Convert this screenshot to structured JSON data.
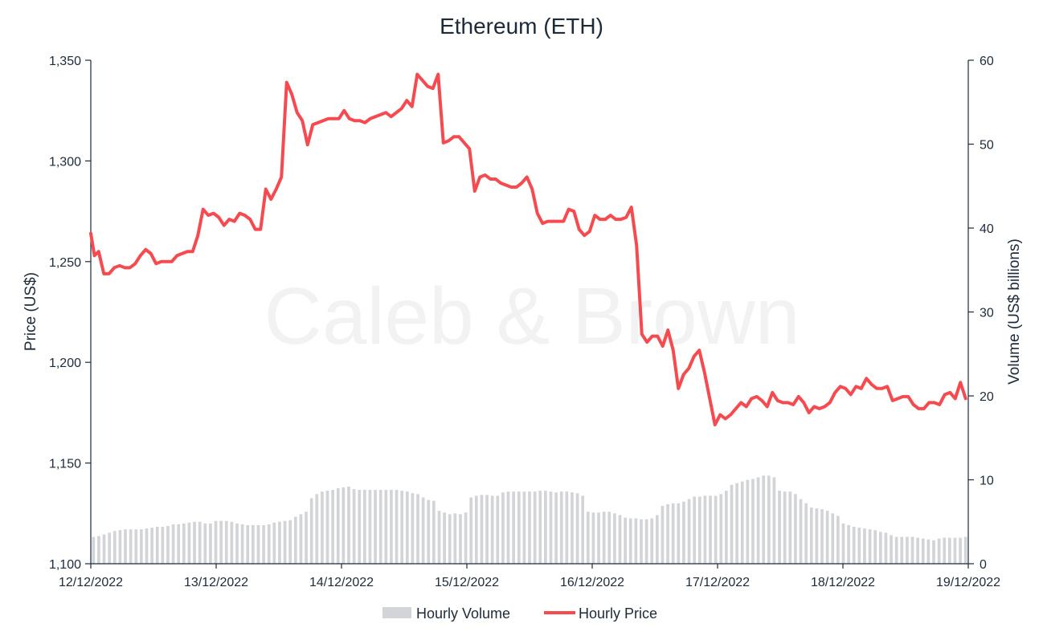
{
  "chart_data": {
    "type": "line",
    "title": "Ethereum (ETH)",
    "watermark": "Caleb & Brown",
    "ylabel_left": "Price (US$)",
    "ylabel_right": "Volume (US$ billions)",
    "ylim_left": [
      1100,
      1350
    ],
    "ylim_right": [
      0,
      60
    ],
    "xlim_hours": [
      0,
      168
    ],
    "yticks_left": [
      "1,100",
      "1,150",
      "1,200",
      "1,250",
      "1,300",
      "1,350"
    ],
    "yticks_right": [
      "0",
      "10",
      "20",
      "30",
      "40",
      "50",
      "60"
    ],
    "x_tick_labels": [
      "12/12/2022",
      "13/12/2022",
      "14/12/2022",
      "15/12/2022",
      "16/12/2022",
      "17/12/2022",
      "18/12/2022",
      "19/12/2022"
    ],
    "legend": {
      "placement": "bottom-center",
      "volume_label": "Hourly Volume",
      "price_label": "Hourly Price"
    },
    "colors": {
      "price": "#f54a4f",
      "volume": "#d3d4d8",
      "text": "#1c2a3a",
      "axis": "#1c2a3a"
    },
    "series": [
      {
        "name": "Hourly Price",
        "kind": "line",
        "points": [
          [
            0,
            1264
          ],
          [
            0.7,
            1253
          ],
          [
            1.5,
            1255
          ],
          [
            2.5,
            1244
          ],
          [
            3.5,
            1244
          ],
          [
            4.5,
            1247
          ],
          [
            5.5,
            1248
          ],
          [
            6.5,
            1247
          ],
          [
            7.5,
            1247
          ],
          [
            8.5,
            1249
          ],
          [
            9.5,
            1253
          ],
          [
            10.5,
            1256
          ],
          [
            11.5,
            1254
          ],
          [
            12.5,
            1249
          ],
          [
            13.5,
            1250
          ],
          [
            14.5,
            1250
          ],
          [
            15.5,
            1250
          ],
          [
            16.5,
            1253
          ],
          [
            17.5,
            1254
          ],
          [
            18.5,
            1255
          ],
          [
            19.5,
            1255
          ],
          [
            20.5,
            1263
          ],
          [
            21.5,
            1276
          ],
          [
            22.5,
            1273
          ],
          [
            23.5,
            1274
          ],
          [
            24.5,
            1272
          ],
          [
            25.5,
            1268
          ],
          [
            26.5,
            1271
          ],
          [
            27.5,
            1270
          ],
          [
            28.5,
            1274
          ],
          [
            29.5,
            1273
          ],
          [
            30.5,
            1271
          ],
          [
            31.5,
            1266
          ],
          [
            32.5,
            1266
          ],
          [
            33.5,
            1286
          ],
          [
            34.5,
            1281
          ],
          [
            35.5,
            1286
          ],
          [
            36.5,
            1292
          ],
          [
            37.5,
            1339
          ],
          [
            38.5,
            1333
          ],
          [
            39.5,
            1324
          ],
          [
            40.5,
            1320
          ],
          [
            41.5,
            1308
          ],
          [
            42.5,
            1318
          ],
          [
            43.5,
            1319
          ],
          [
            44.5,
            1320
          ],
          [
            45.5,
            1321
          ],
          [
            46.5,
            1321
          ],
          [
            47.5,
            1321
          ],
          [
            48.5,
            1325
          ],
          [
            49.5,
            1321
          ],
          [
            50.5,
            1320
          ],
          [
            51.5,
            1320
          ],
          [
            52.5,
            1319
          ],
          [
            53.5,
            1321
          ],
          [
            54.5,
            1322
          ],
          [
            55.5,
            1323
          ],
          [
            56.5,
            1324
          ],
          [
            57.5,
            1322
          ],
          [
            58.5,
            1324
          ],
          [
            59.5,
            1326
          ],
          [
            60.5,
            1330
          ],
          [
            61.5,
            1327
          ],
          [
            62.5,
            1343
          ],
          [
            63.5,
            1340
          ],
          [
            64.5,
            1337
          ],
          [
            65.5,
            1336
          ],
          [
            66.5,
            1343
          ],
          [
            67.5,
            1309
          ],
          [
            68.5,
            1310
          ],
          [
            69.5,
            1312
          ],
          [
            70.5,
            1312
          ],
          [
            71.5,
            1309
          ],
          [
            72.5,
            1306
          ],
          [
            73.5,
            1285
          ],
          [
            74.5,
            1292
          ],
          [
            75.5,
            1293
          ],
          [
            76.5,
            1291
          ],
          [
            77.5,
            1291
          ],
          [
            78.5,
            1289
          ],
          [
            79.5,
            1288
          ],
          [
            80.5,
            1287
          ],
          [
            81.5,
            1287
          ],
          [
            82.5,
            1289
          ],
          [
            83.5,
            1292
          ],
          [
            84.5,
            1286
          ],
          [
            85.5,
            1274
          ],
          [
            86.5,
            1269
          ],
          [
            87.5,
            1270
          ],
          [
            88.5,
            1270
          ],
          [
            89.5,
            1270
          ],
          [
            90.5,
            1270
          ],
          [
            91.5,
            1276
          ],
          [
            92.5,
            1275
          ],
          [
            93.5,
            1266
          ],
          [
            94.5,
            1263
          ],
          [
            95.5,
            1265
          ],
          [
            96.5,
            1273
          ],
          [
            97.5,
            1271
          ],
          [
            98.5,
            1271
          ],
          [
            99.5,
            1273
          ],
          [
            100.5,
            1271
          ],
          [
            101.5,
            1271
          ],
          [
            102.5,
            1272
          ],
          [
            103.5,
            1277
          ],
          [
            104.5,
            1258
          ],
          [
            105.5,
            1214
          ],
          [
            106.5,
            1210
          ],
          [
            107.5,
            1213
          ],
          [
            108.5,
            1213
          ],
          [
            109.5,
            1208
          ],
          [
            110.5,
            1216
          ],
          [
            111.5,
            1206
          ],
          [
            112.5,
            1187
          ],
          [
            113.5,
            1194
          ],
          [
            114.5,
            1197
          ],
          [
            115.5,
            1203
          ],
          [
            116.5,
            1206
          ],
          [
            117.5,
            1195
          ],
          [
            118.5,
            1182
          ],
          [
            119.5,
            1169
          ],
          [
            120.5,
            1174
          ],
          [
            121.5,
            1172
          ],
          [
            122.5,
            1174
          ],
          [
            123.5,
            1177
          ],
          [
            124.5,
            1180
          ],
          [
            125.5,
            1178
          ],
          [
            126.5,
            1182
          ],
          [
            127.5,
            1183
          ],
          [
            128.5,
            1181
          ],
          [
            129.5,
            1178
          ],
          [
            130.5,
            1185
          ],
          [
            131.5,
            1181
          ],
          [
            132.5,
            1180
          ],
          [
            133.5,
            1180
          ],
          [
            134.5,
            1179
          ],
          [
            135.5,
            1183
          ],
          [
            136.5,
            1180
          ],
          [
            137.5,
            1175
          ],
          [
            138.5,
            1178
          ],
          [
            139.5,
            1177
          ],
          [
            140.5,
            1178
          ],
          [
            141.5,
            1180
          ],
          [
            142.5,
            1185
          ],
          [
            143.5,
            1188
          ],
          [
            144.5,
            1187
          ],
          [
            145.5,
            1184
          ],
          [
            146.5,
            1188
          ],
          [
            147.5,
            1187
          ],
          [
            148.5,
            1192
          ],
          [
            149.5,
            1189
          ],
          [
            150.5,
            1187
          ],
          [
            151.5,
            1187
          ],
          [
            152.5,
            1188
          ],
          [
            153.5,
            1181
          ],
          [
            154.5,
            1182
          ],
          [
            155.5,
            1183
          ],
          [
            156.5,
            1183
          ],
          [
            157.5,
            1179
          ],
          [
            158.5,
            1177
          ],
          [
            159.5,
            1177
          ],
          [
            160.5,
            1180
          ],
          [
            161.5,
            1180
          ],
          [
            162.5,
            1179
          ],
          [
            163.5,
            1184
          ],
          [
            164.5,
            1185
          ],
          [
            165.5,
            1182
          ],
          [
            166.5,
            1190
          ],
          [
            167.5,
            1182
          ]
        ]
      },
      {
        "name": "Hourly Volume",
        "kind": "bar",
        "unit": "US$ billions",
        "values": [
          3.2,
          3.3,
          3.5,
          3.7,
          3.9,
          4,
          4.1,
          4.1,
          4.1,
          4.1,
          4.2,
          4.3,
          4.4,
          4.4,
          4.5,
          4.7,
          4.7,
          4.8,
          4.9,
          5,
          5,
          4.8,
          4.8,
          5.1,
          5.1,
          5.1,
          5,
          4.8,
          4.7,
          4.6,
          4.6,
          4.6,
          4.6,
          4.7,
          4.9,
          5,
          5.1,
          5.2,
          5.6,
          5.9,
          6.2,
          7.8,
          8.3,
          8.6,
          8.7,
          8.8,
          9,
          9.1,
          9.2,
          8.9,
          8.8,
          8.8,
          8.8,
          8.8,
          8.8,
          8.8,
          8.8,
          8.8,
          8.7,
          8.6,
          8.4,
          8.3,
          7.9,
          7.6,
          7.5,
          6.3,
          6.1,
          5.9,
          6,
          5.9,
          6.1,
          7.9,
          8.1,
          8.2,
          8.2,
          8.1,
          8.1,
          8.5,
          8.6,
          8.6,
          8.6,
          8.6,
          8.6,
          8.6,
          8.7,
          8.7,
          8.6,
          8.5,
          8.6,
          8.6,
          8.5,
          8.4,
          8.1,
          6.2,
          6.1,
          6.1,
          6.2,
          6.2,
          6,
          5.8,
          5.5,
          5.4,
          5.4,
          5.3,
          5.3,
          5.4,
          5.8,
          6.9,
          7.1,
          7.2,
          7.2,
          7.4,
          7.7,
          8,
          8,
          8.1,
          8.1,
          8.1,
          8.3,
          8.7,
          9.4,
          9.6,
          9.8,
          10,
          10.1,
          10.3,
          10.5,
          10.5,
          10.3,
          8.7,
          8.6,
          8.6,
          8.3,
          7.7,
          7.2,
          6.7,
          6.6,
          6.5,
          6.3,
          6,
          5.7,
          4.8,
          4.6,
          4.4,
          4.3,
          4.2,
          4.1,
          4,
          3.8,
          3.7,
          3.4,
          3.2,
          3.2,
          3.2,
          3.2,
          3.1,
          3,
          2.9,
          2.8,
          3,
          3.1,
          3.1,
          3.1,
          3.1,
          3.2
        ]
      }
    ]
  }
}
